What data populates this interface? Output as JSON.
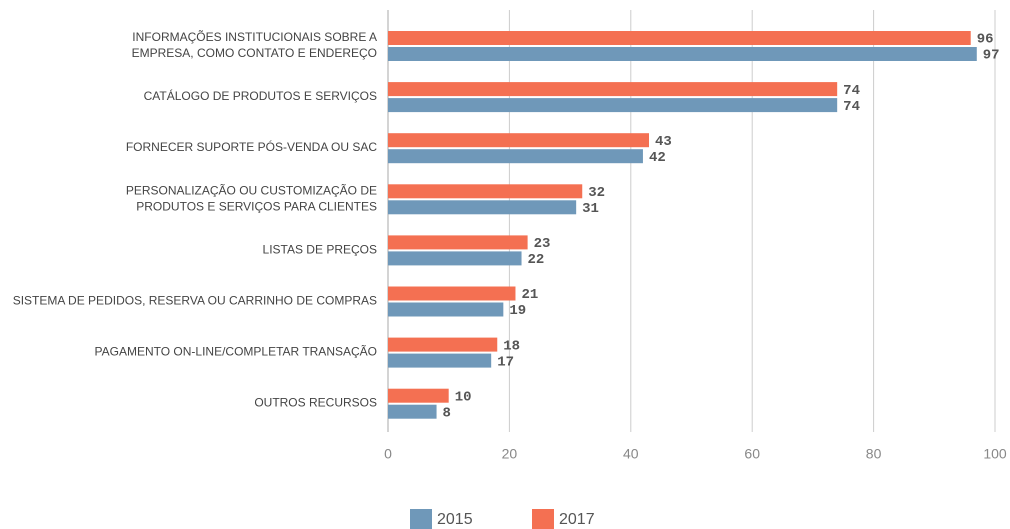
{
  "chart_data": {
    "type": "barh",
    "categories": [
      "INFORMAÇÕES INSTITUCIONAIS SOBRE A\nEMPRESA, COMO CONTATO E ENDEREÇO",
      "CATÁLOGO DE PRODUTOS E SERVIÇOS",
      "FORNECER SUPORTE PÓS-VENDA OU SAC",
      "PERSONALIZAÇÃO OU CUSTOMIZAÇÃO DE\nPRODUTOS E SERVIÇOS PARA CLIENTES",
      "LISTAS DE PREÇOS",
      "SISTEMA DE PEDIDOS, RESERVA OU CARRINHO DE COMPRAS",
      "PAGAMENTO ON-LINE/COMPLETAR TRANSAÇÃO",
      "OUTROS RECURSOS"
    ],
    "series": [
      {
        "name": "2015",
        "color": "#6f98b9",
        "values": [
          97,
          74,
          42,
          31,
          22,
          19,
          17,
          8
        ]
      },
      {
        "name": "2017",
        "color": "#f47052",
        "values": [
          96,
          74,
          43,
          32,
          23,
          21,
          18,
          10
        ]
      }
    ],
    "xlim": [
      0,
      100
    ],
    "xticks": [
      0,
      20,
      40,
      60,
      80,
      100
    ],
    "grid": true,
    "legend": "bottom"
  }
}
